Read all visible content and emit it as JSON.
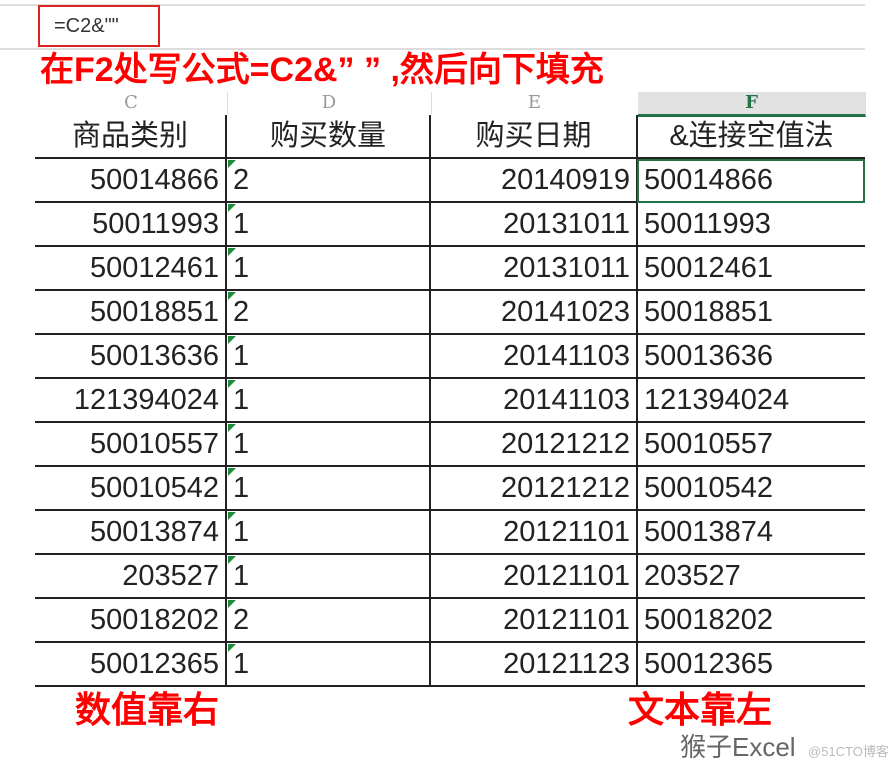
{
  "formula_bar": {
    "formula": "=C2&\"\""
  },
  "annotation_title": "在F2处写公式=C2&” ” ,然后向下填充",
  "column_letters": [
    "C",
    "D",
    "E",
    "F"
  ],
  "headers": [
    "商品类别",
    "购买数量",
    "购买日期",
    "&连接空值法"
  ],
  "rows": [
    [
      "50014866",
      "2",
      "20140919",
      "50014866"
    ],
    [
      "50011993",
      "1",
      "20131011",
      "50011993"
    ],
    [
      "50012461",
      "1",
      "20131011",
      "50012461"
    ],
    [
      "50018851",
      "2",
      "20141023",
      "50018851"
    ],
    [
      "50013636",
      "1",
      "20141103",
      "50013636"
    ],
    [
      "121394024",
      "1",
      "20141103",
      "121394024"
    ],
    [
      "50010557",
      "1",
      "20121212",
      "50010557"
    ],
    [
      "50010542",
      "1",
      "20121212",
      "50010542"
    ],
    [
      "50013874",
      "1",
      "20121101",
      "50013874"
    ],
    [
      "203527",
      "1",
      "20121101",
      "203527"
    ],
    [
      "50018202",
      "2",
      "20121101",
      "50018202"
    ],
    [
      "50012365",
      "1",
      "20121123",
      "50012365"
    ]
  ],
  "notes": {
    "left": "数值靠右",
    "right": "文本靠左"
  },
  "watermark": "猴子Excel",
  "watermark_small": "@51CTO博客",
  "colors": {
    "annotation": "#ff0000",
    "selection": "#217346"
  }
}
